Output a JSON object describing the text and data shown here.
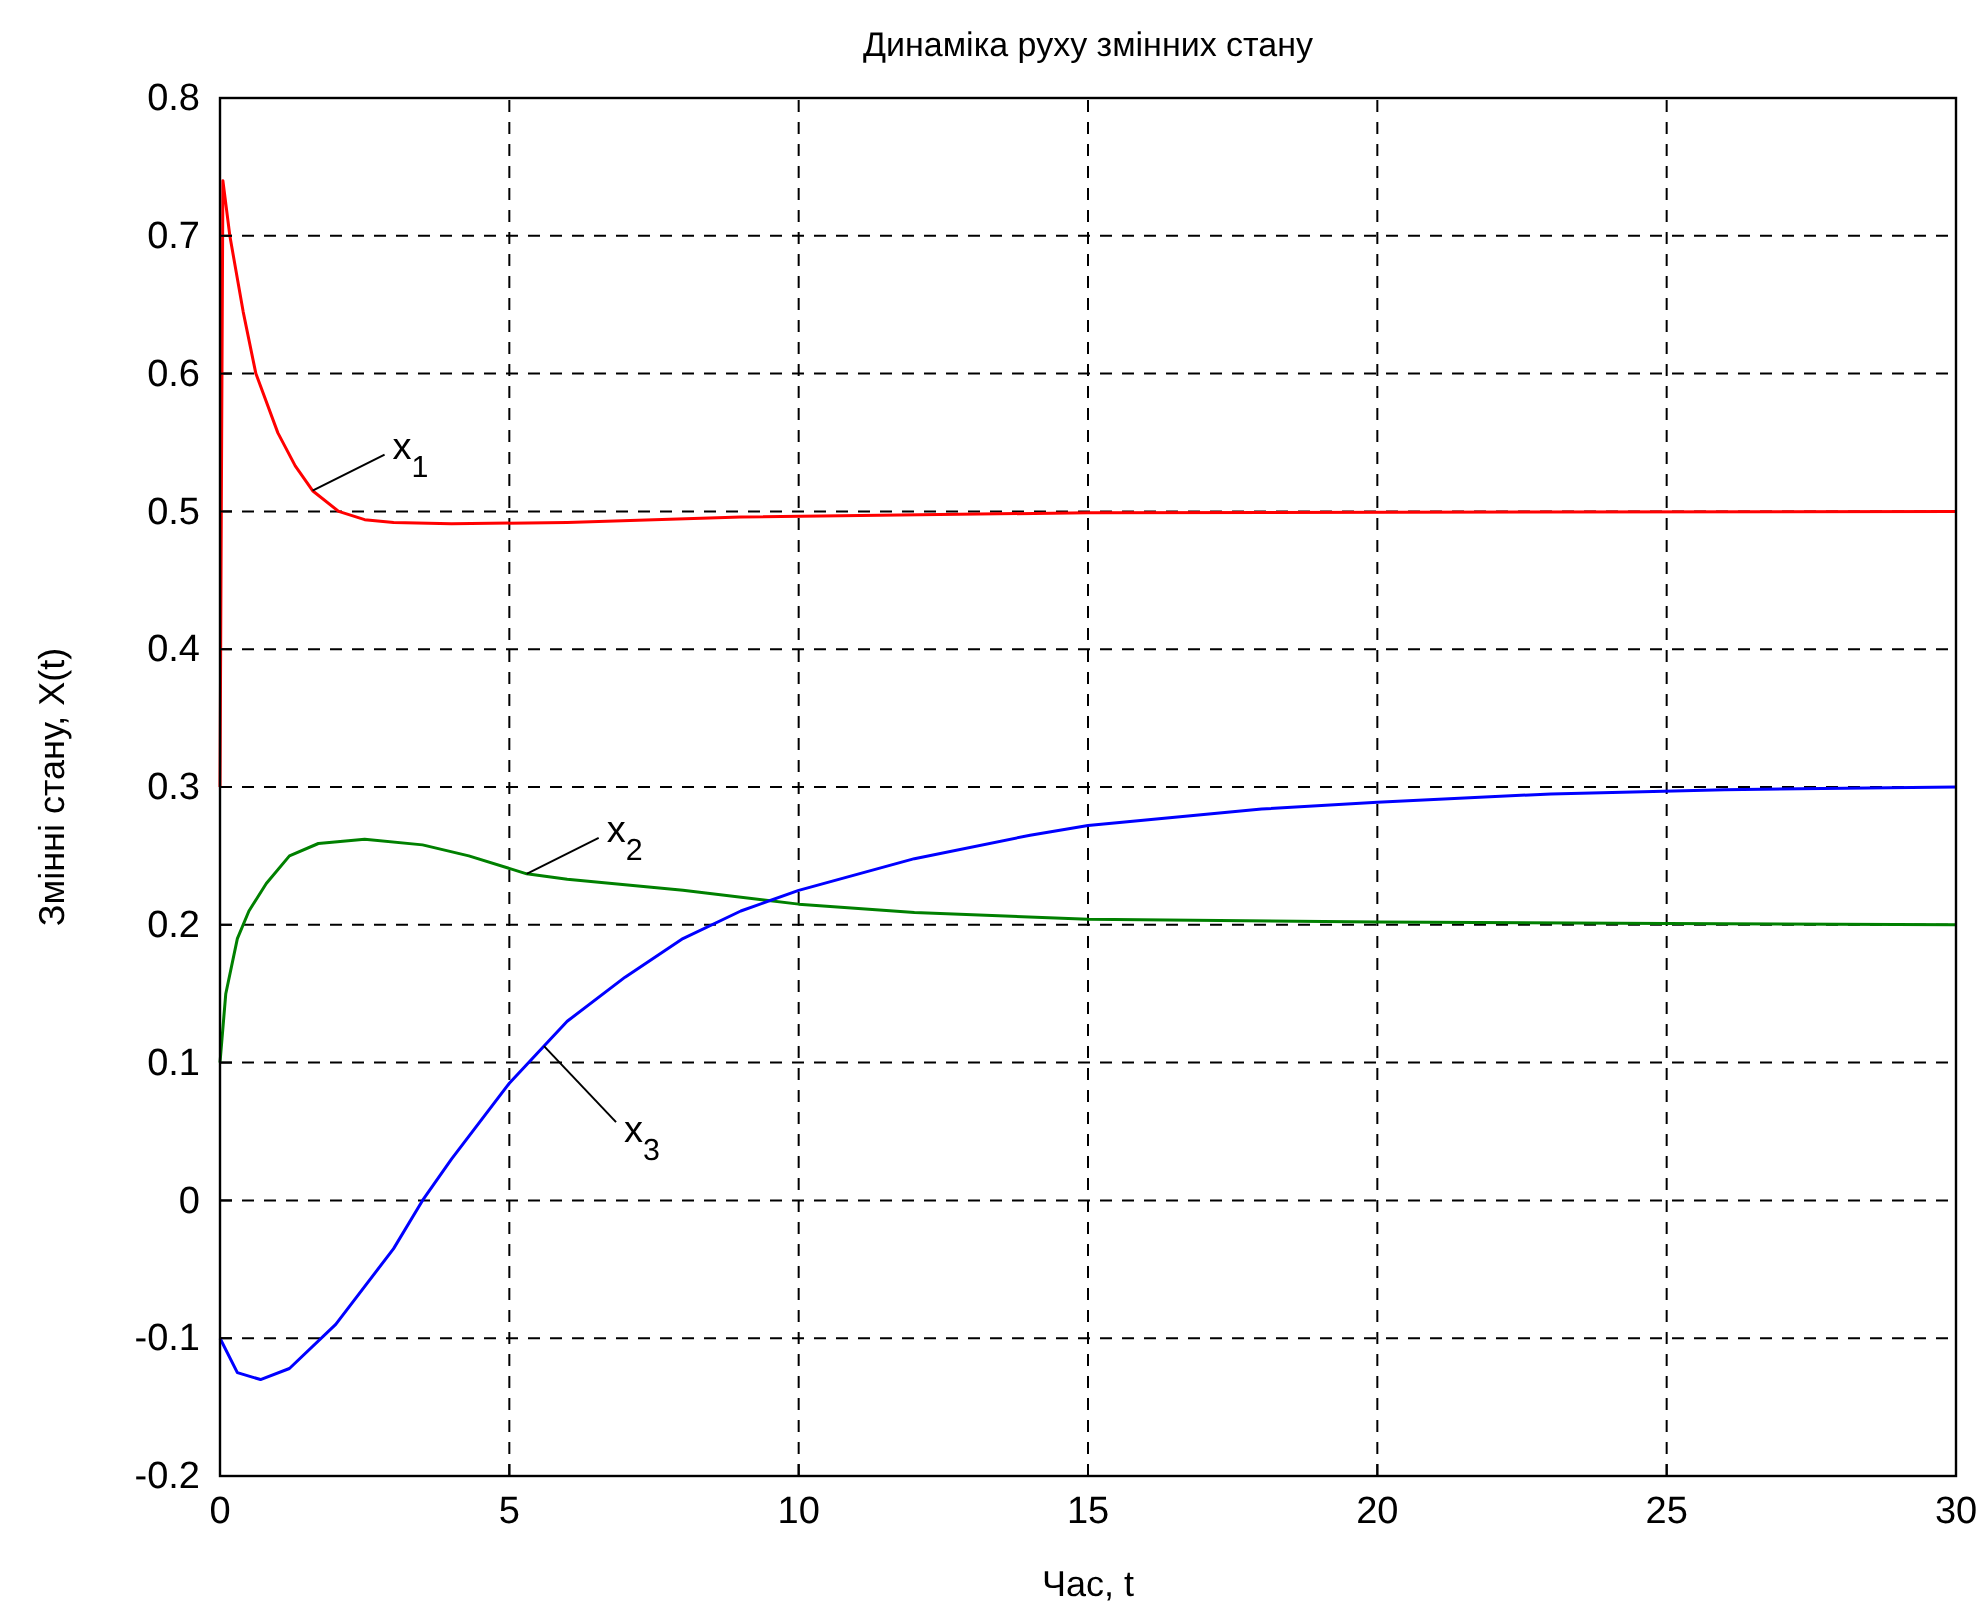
{
  "chart_data": {
    "type": "line",
    "title": "Динаміка руху змінних стану",
    "xlabel": "Час, t",
    "ylabel": "Змінні стану, X(t)",
    "xlim": [
      0,
      30
    ],
    "xticks": [
      0,
      5,
      10,
      15,
      20,
      25,
      30
    ],
    "ylim": [
      -0.2,
      0.8
    ],
    "yticks": [
      -0.2,
      -0.1,
      0,
      0.1,
      0.2,
      0.3,
      0.4,
      0.5,
      0.6,
      0.7,
      0.8
    ],
    "grid": true,
    "line_style": "solid",
    "series": [
      {
        "color": "#ff0000",
        "x": [
          0,
          0.05,
          0.17,
          0.4,
          0.62,
          1,
          1.3,
          1.6,
          2.05,
          2.5,
          3,
          4,
          6,
          9,
          15,
          30
        ],
        "values": [
          0.3,
          0.74,
          0.7,
          0.645,
          0.6,
          0.557,
          0.533,
          0.515,
          0.5,
          0.494,
          0.492,
          0.491,
          0.492,
          0.496,
          0.499,
          0.5
        ]
      },
      {
        "color": "#008000",
        "x": [
          0,
          0.1,
          0.3,
          0.5,
          0.8,
          1.2,
          1.7,
          2.5,
          3.5,
          4.3,
          5.3,
          6,
          8,
          10,
          12,
          15,
          20,
          25,
          30
        ],
        "values": [
          0.1,
          0.15,
          0.19,
          0.21,
          0.23,
          0.25,
          0.259,
          0.262,
          0.258,
          0.25,
          0.237,
          0.233,
          0.225,
          0.215,
          0.209,
          0.204,
          0.202,
          0.201,
          0.2
        ]
      },
      {
        "color": "#0000ff",
        "x": [
          0,
          0.3,
          0.7,
          1.2,
          2,
          3,
          3.5,
          4,
          5,
          5.6,
          6,
          7,
          8,
          9,
          10,
          12,
          14,
          15,
          18,
          20,
          23,
          26,
          30
        ],
        "values": [
          -0.1,
          -0.125,
          -0.13,
          -0.122,
          -0.09,
          -0.035,
          0,
          0.03,
          0.085,
          0.112,
          0.13,
          0.162,
          0.19,
          0.21,
          0.225,
          0.248,
          0.265,
          0.272,
          0.284,
          0.289,
          0.295,
          0.298,
          0.3
        ]
      }
    ],
    "annotations": [
      {
        "text": "x$_{1}$",
        "x": 1.6,
        "y": 0.515
      },
      {
        "text": "x$_{2}$",
        "x": 5.3,
        "y": 0.237
      },
      {
        "text": "x$_{3}$",
        "x": 5.6,
        "y": 0.112
      }
    ]
  }
}
